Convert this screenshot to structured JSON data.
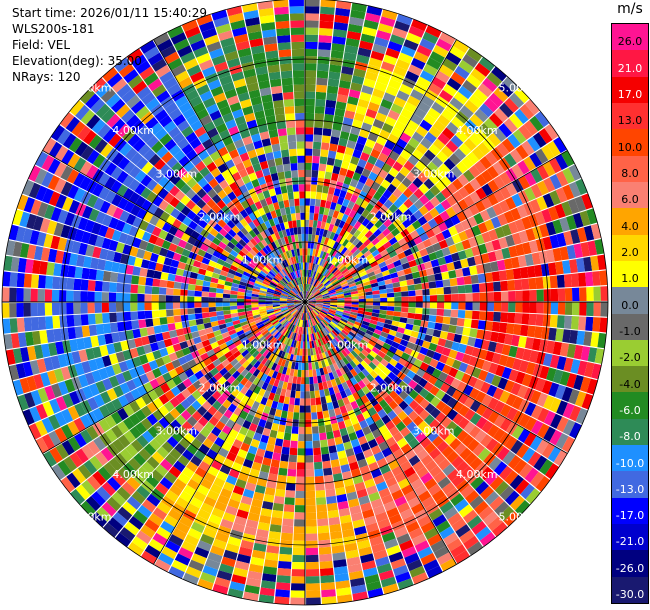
{
  "header": {
    "start_time": "Start time: 2026/01/11 15:40:29",
    "instrument": "WLS200s-181",
    "field": "Field: VEL",
    "elevation": "Elevation(deg): 35.00",
    "nrays": "NRays: 120"
  },
  "range_rings": [
    "1.00km",
    "2.00km",
    "3.00km",
    "4.00km",
    "5.00km"
  ],
  "colorbar": {
    "unit": "m/s",
    "colors": [
      "#ff1493",
      "#ff1744",
      "#f50000",
      "#ff3030",
      "#ff4500",
      "#ff6347",
      "#fa8072",
      "#ffa500",
      "#ffd700",
      "#ffff00",
      "#778899",
      "#696969",
      "#9acd32",
      "#6b8e23",
      "#228b22",
      "#2e8b57",
      "#1e90ff",
      "#4169e1",
      "#0000ff",
      "#0000cd",
      "#000080",
      "#191970"
    ],
    "tick_labels": [
      "26.0",
      "21.0",
      "17.0",
      "13.0",
      "10.0",
      "8.0",
      "6.0",
      "4.0",
      "2.0",
      "1.0",
      "0.0",
      "-1.0",
      "-2.0",
      "-4.0",
      "-6.0",
      "-8.0",
      "-10.0",
      "-13.0",
      "-17.0",
      "-21.0",
      "-26.0",
      "-30.0"
    ]
  }
}
